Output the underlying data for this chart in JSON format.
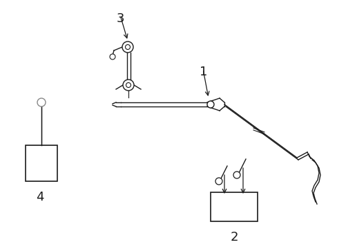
{
  "bg_color": "#ffffff",
  "line_color": "#1a1a1a",
  "gray_color": "#888888",
  "fig_width": 4.89,
  "fig_height": 3.6,
  "dpi": 100,
  "label_fontsize": 13
}
